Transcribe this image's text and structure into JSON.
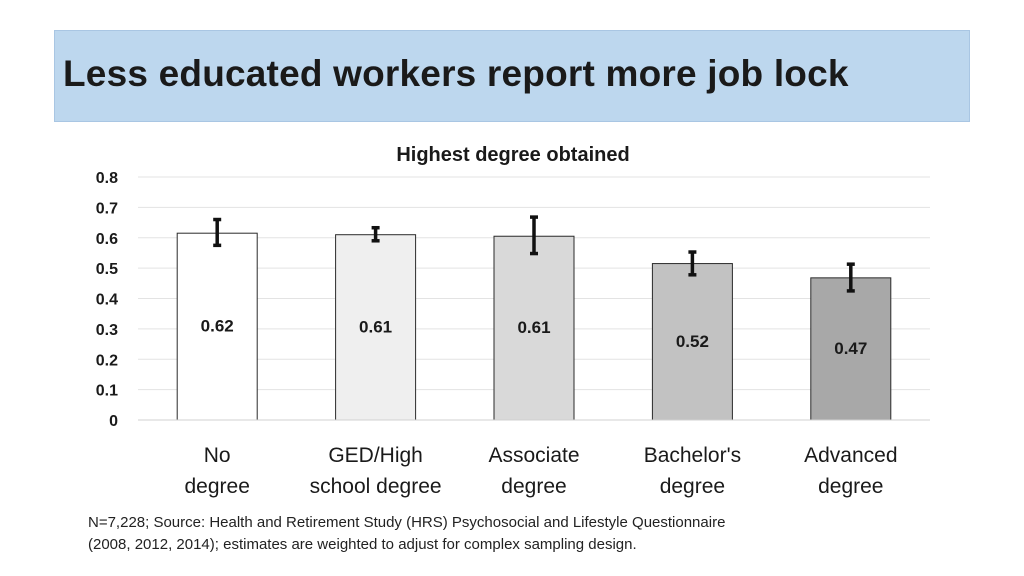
{
  "slide": {
    "title": "Less educated workers report more job lock",
    "footnote_lines": [
      "N=7,228; Source: Health and Retirement Study (HRS) Psychosocial and Lifestyle Questionnaire",
      "(2008, 2012, 2014); estimates are weighted to adjust for complex sampling design."
    ]
  },
  "chart_data": {
    "type": "bar",
    "title": "Highest degree obtained",
    "xlabel": "",
    "ylabel": "",
    "ylim": [
      0,
      0.8
    ],
    "yticks": [
      0,
      0.1,
      0.2,
      0.3,
      0.4,
      0.5,
      0.6,
      0.7,
      0.8
    ],
    "ytick_labels": [
      "0",
      "0.1",
      "0.2",
      "0.3",
      "0.4",
      "0.5",
      "0.6",
      "0.7",
      "0.8"
    ],
    "grid": true,
    "categories": [
      [
        "No",
        "degree"
      ],
      [
        "GED/High",
        "school degree"
      ],
      [
        "Associate",
        "degree"
      ],
      [
        "Bachelor's",
        "degree"
      ],
      [
        "Advanced",
        "degree"
      ]
    ],
    "values": [
      0.615,
      0.61,
      0.605,
      0.515,
      0.468
    ],
    "data_labels": [
      "0.62",
      "0.61",
      "0.61",
      "0.52",
      "0.47"
    ],
    "error_bars": [
      {
        "low": 0.575,
        "high": 0.66
      },
      {
        "low": 0.59,
        "high": 0.633
      },
      {
        "low": 0.548,
        "high": 0.668
      },
      {
        "low": 0.478,
        "high": 0.553
      },
      {
        "low": 0.425,
        "high": 0.513
      }
    ],
    "bar_colors": [
      "#ffffff",
      "#efefef",
      "#d9d9d9",
      "#c2c2c2",
      "#a8a8a8"
    ],
    "bar_edge_color": "#2a2a2a",
    "grid_color": "#e3e3e3"
  }
}
